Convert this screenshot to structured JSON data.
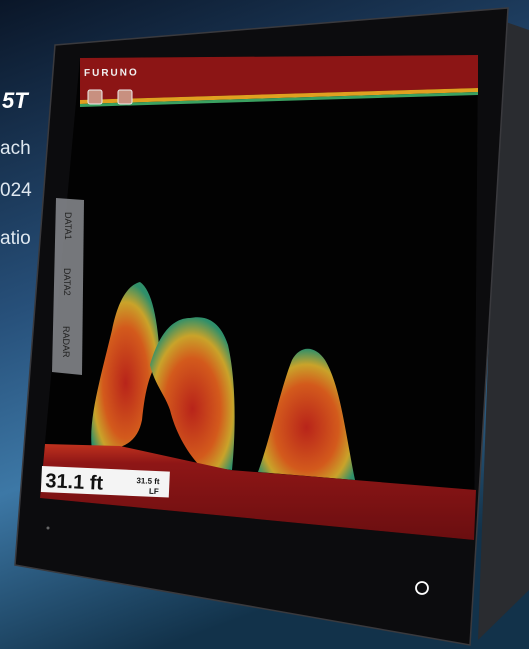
{
  "brand": "FURUNO",
  "background_text": [
    "5T",
    "ach",
    "024",
    "atio"
  ],
  "side_tabs": [
    "DATA1",
    "DATA2",
    "RADAR"
  ],
  "depth": {
    "main": "31.1 ft",
    "secondary": "31.5 ft",
    "frequency": "LF"
  }
}
